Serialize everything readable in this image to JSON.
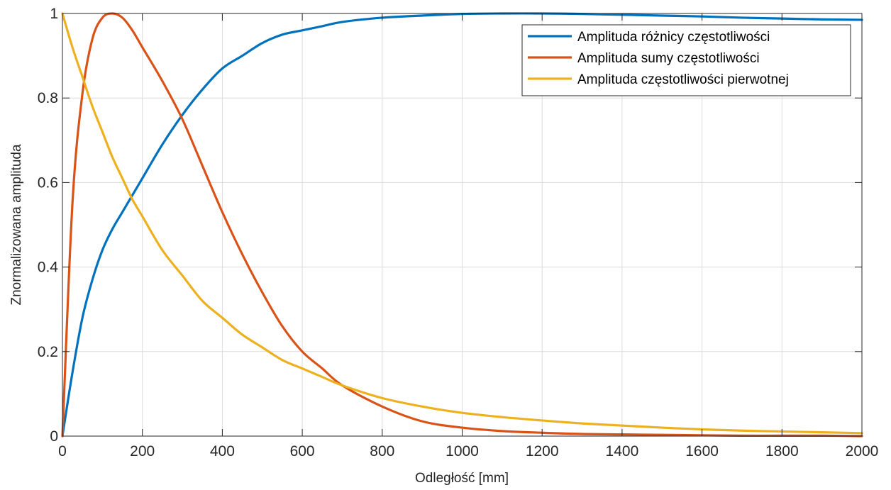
{
  "chart_data": {
    "type": "line",
    "title": "",
    "xlabel": "Odległość [mm]",
    "ylabel": "Znormalizowana amplituda",
    "xlim": [
      0,
      2000
    ],
    "ylim": [
      0,
      1
    ],
    "xticks": [
      0,
      200,
      400,
      600,
      800,
      1000,
      1200,
      1400,
      1600,
      1800,
      2000
    ],
    "xtick_labels": [
      "0",
      "200",
      "400",
      "600",
      "800",
      "1000",
      "1200",
      "1400",
      "1600",
      "1800",
      "2000"
    ],
    "yticks": [
      0,
      0.2,
      0.4,
      0.6,
      0.8,
      1
    ],
    "ytick_labels": [
      "0",
      "0.2",
      "0.4",
      "0.6",
      "0.8",
      "1"
    ],
    "grid": true,
    "legend_position": "top-right",
    "x": [
      0,
      25,
      50,
      75,
      100,
      125,
      150,
      175,
      200,
      250,
      300,
      350,
      400,
      450,
      500,
      550,
      600,
      650,
      700,
      800,
      900,
      1000,
      1100,
      1200,
      1300,
      1400,
      1500,
      1600,
      1700,
      1800,
      1900,
      2000
    ],
    "series": [
      {
        "name": "Amplituda różnicy częstotliwości",
        "color": "#0072BD",
        "values": [
          0.0,
          0.15,
          0.28,
          0.37,
          0.44,
          0.49,
          0.53,
          0.57,
          0.61,
          0.69,
          0.76,
          0.82,
          0.87,
          0.9,
          0.93,
          0.95,
          0.96,
          0.97,
          0.98,
          0.99,
          0.995,
          0.999,
          1.0,
          1.0,
          0.999,
          0.997,
          0.995,
          0.993,
          0.99,
          0.988,
          0.986,
          0.985
        ]
      },
      {
        "name": "Amplituda sumy częstotliwości",
        "color": "#D95319",
        "values": [
          0.0,
          0.55,
          0.81,
          0.94,
          0.99,
          1.0,
          0.99,
          0.96,
          0.92,
          0.84,
          0.75,
          0.64,
          0.53,
          0.43,
          0.34,
          0.26,
          0.2,
          0.16,
          0.12,
          0.07,
          0.035,
          0.02,
          0.012,
          0.008,
          0.005,
          0.004,
          0.003,
          0.002,
          0.001,
          0.001,
          0.001,
          0.0
        ]
      },
      {
        "name": "Amplituda częstotliwości pierwotnej",
        "color": "#EDB120",
        "values": [
          1.0,
          0.92,
          0.85,
          0.78,
          0.72,
          0.66,
          0.61,
          0.56,
          0.52,
          0.44,
          0.38,
          0.32,
          0.28,
          0.24,
          0.21,
          0.18,
          0.16,
          0.14,
          0.12,
          0.09,
          0.07,
          0.055,
          0.045,
          0.037,
          0.03,
          0.025,
          0.02,
          0.016,
          0.013,
          0.011,
          0.009,
          0.007
        ]
      }
    ]
  }
}
